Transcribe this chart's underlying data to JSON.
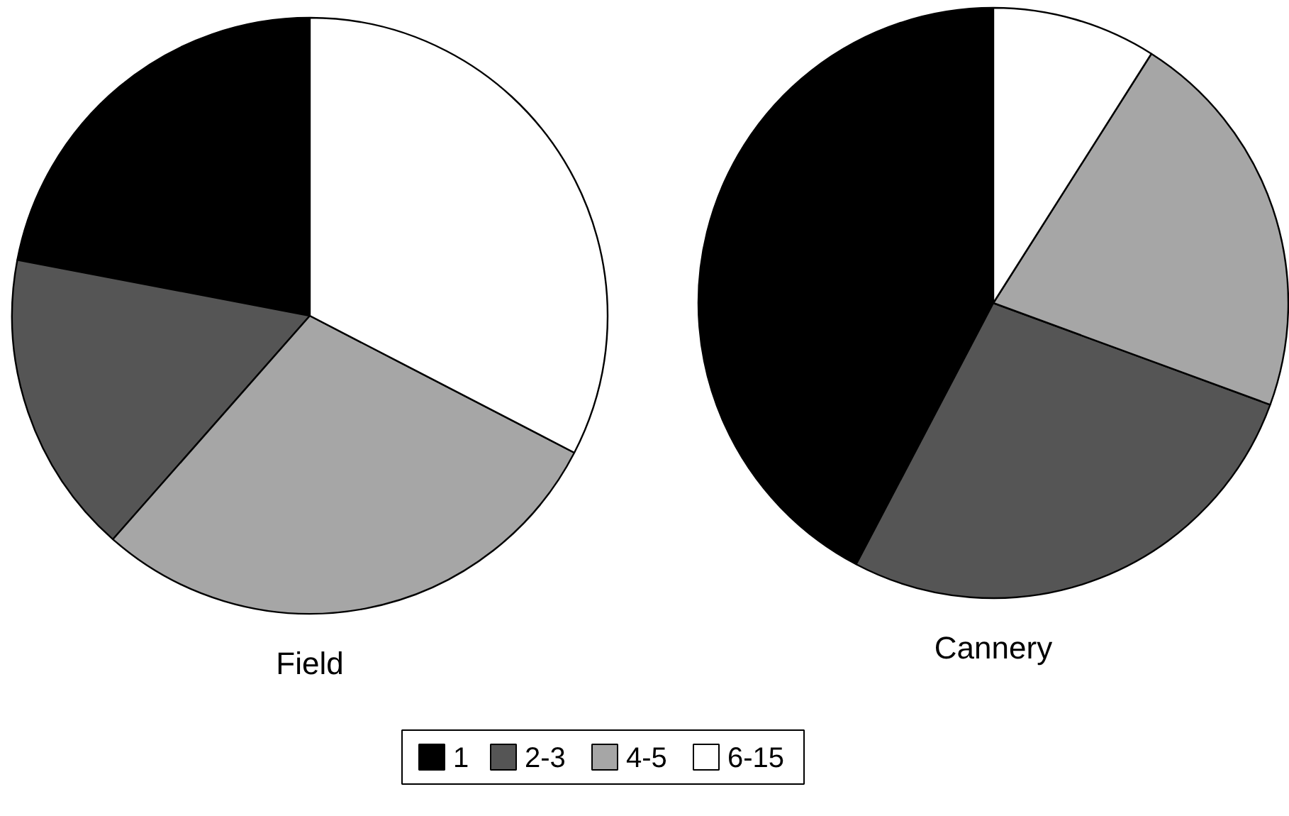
{
  "chart_data": [
    {
      "type": "pie",
      "title": "Field",
      "categories": [
        "1",
        "2-3",
        "4-5",
        "6-15"
      ],
      "values": [
        22,
        16.5,
        28.9,
        32.6
      ],
      "colors": [
        "#000000",
        "#555555",
        "#a6a6a6",
        "#ffffff"
      ],
      "legend": "bottom"
    },
    {
      "type": "pie",
      "title": "Cannery",
      "categories": [
        null,
        null,
        null,
        null
      ],
      "values": [
        42.3,
        27.1,
        21.6,
        9
      ],
      "colors": [
        "#000000",
        "#555555",
        "#a6a6a6",
        "#ffffff"
      ]
    }
  ]
}
